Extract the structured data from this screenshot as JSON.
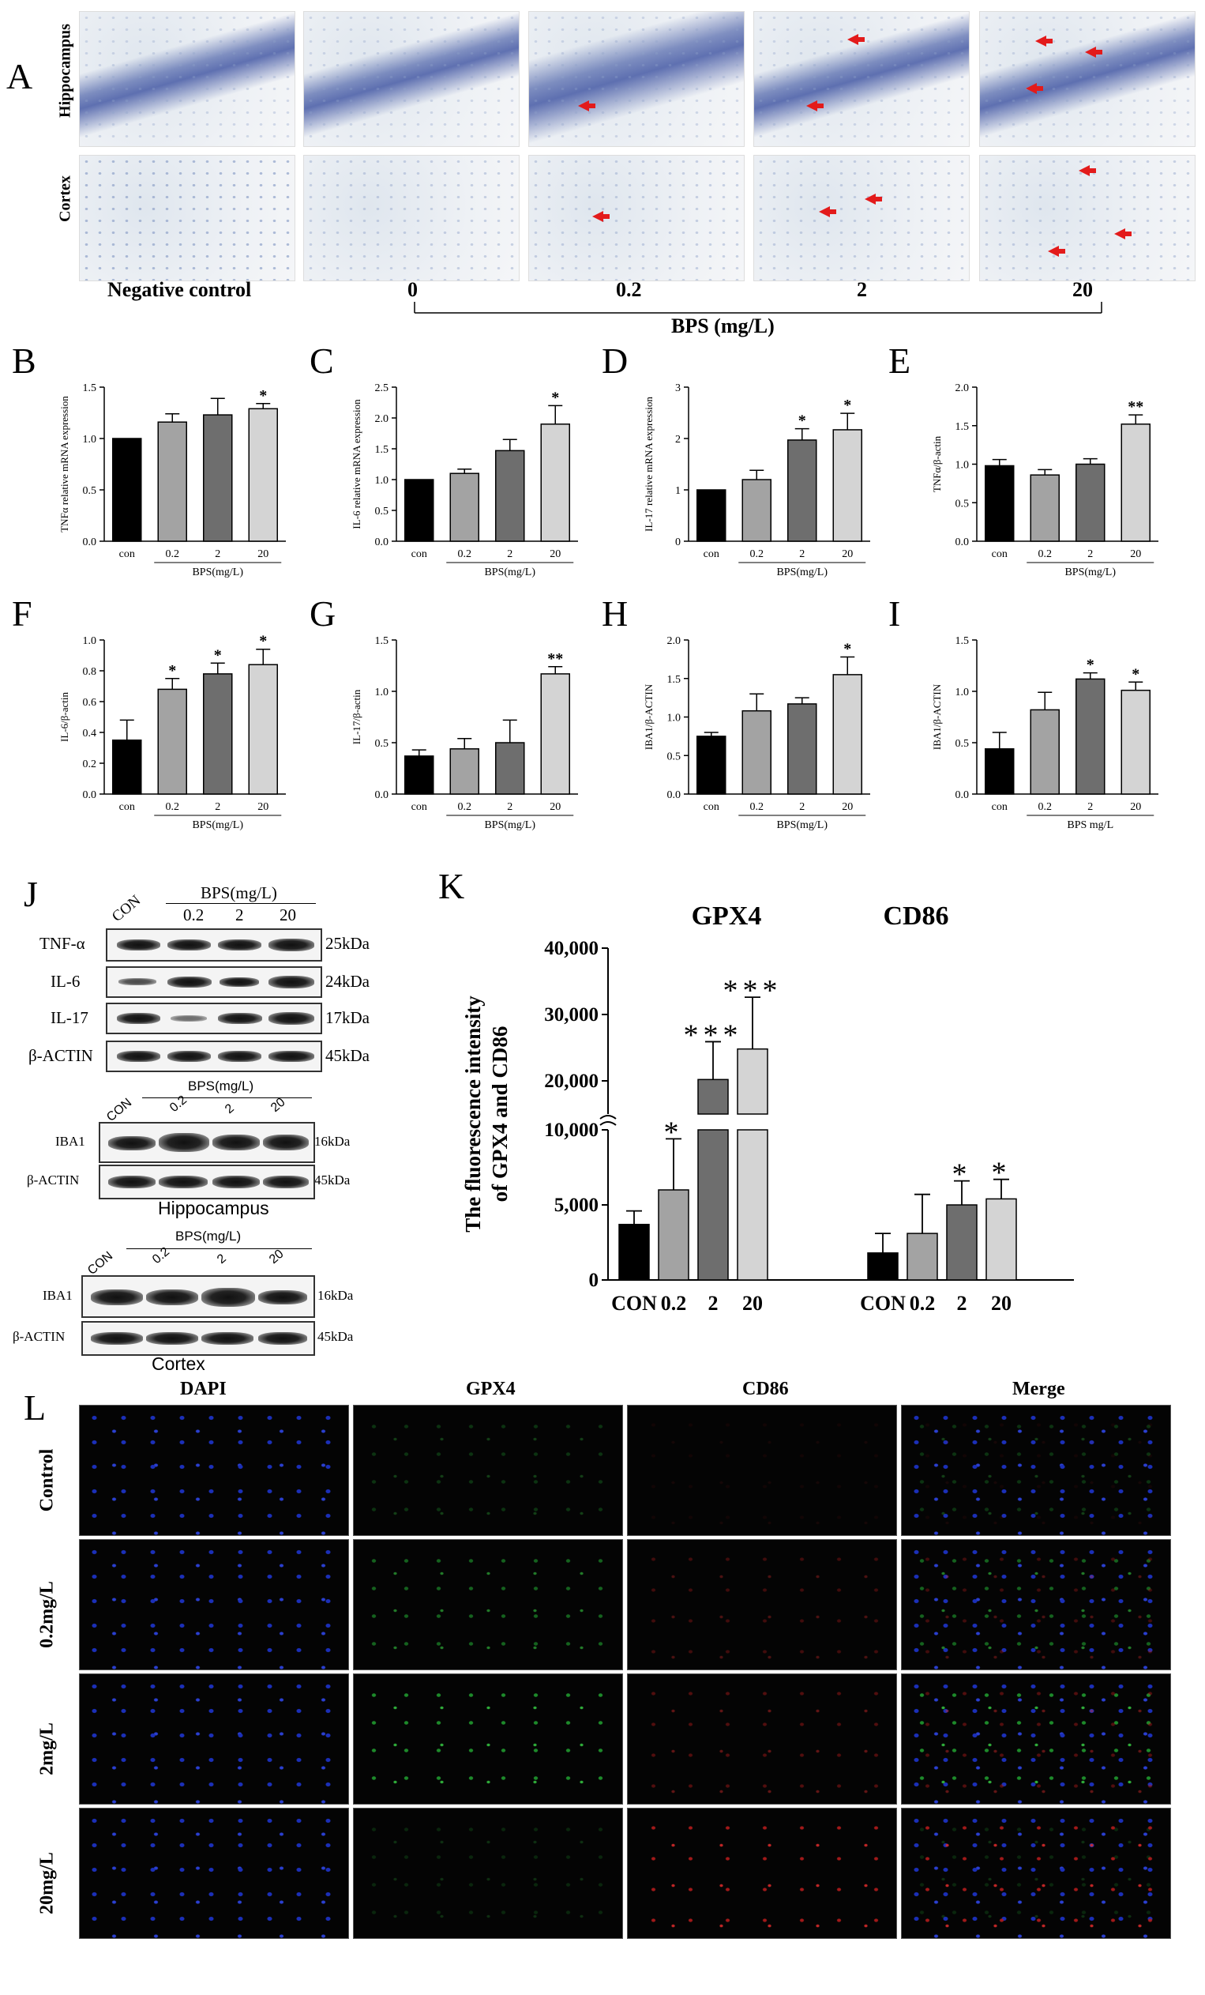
{
  "panel_letters": {
    "A": "A",
    "B": "B",
    "C": "C",
    "D": "D",
    "E": "E",
    "F": "F",
    "G": "G",
    "H": "H",
    "I": "I",
    "J": "J",
    "K": "K",
    "L": "L"
  },
  "panel_a": {
    "row_labels": [
      "Hippocampus",
      "Cortex"
    ],
    "columns": [
      "Negative control",
      "0",
      "0.2",
      "2",
      "20"
    ],
    "axis_title": "BPS (mg/L)"
  },
  "chart_data": [
    {
      "id": "B",
      "type": "bar",
      "categories": [
        "con",
        "0.2",
        "2",
        "20"
      ],
      "values": [
        1.0,
        1.16,
        1.23,
        1.29
      ],
      "errors": [
        0,
        0.08,
        0.16,
        0.05
      ],
      "stars": [
        "",
        "",
        "",
        "*"
      ],
      "ylabel": "TNFα relative mRNA expression",
      "xgroup_label": "BPS(mg/L)",
      "ylim": [
        0,
        1.5
      ],
      "yticks": [
        0.0,
        0.5,
        1.0,
        1.5
      ],
      "tick_labels": [
        "0.0",
        "0.5",
        "1.0",
        "1.5"
      ]
    },
    {
      "id": "C",
      "type": "bar",
      "categories": [
        "con",
        "0.2",
        "2",
        "20"
      ],
      "values": [
        1.0,
        1.1,
        1.47,
        1.9
      ],
      "errors": [
        0,
        0.07,
        0.18,
        0.3
      ],
      "stars": [
        "",
        "",
        "",
        "*"
      ],
      "ylabel": "IL-6 relative mRNA expression",
      "xgroup_label": "BPS(mg/L)",
      "ylim": [
        0,
        2.5
      ],
      "yticks": [
        0.0,
        0.5,
        1.0,
        1.5,
        2.0,
        2.5
      ],
      "tick_labels": [
        "0.0",
        "0.5",
        "1.0",
        "1.5",
        "2.0",
        "2.5"
      ]
    },
    {
      "id": "D",
      "type": "bar",
      "categories": [
        "con",
        "0.2",
        "2",
        "20"
      ],
      "values": [
        1.0,
        1.2,
        1.97,
        2.17
      ],
      "errors": [
        0,
        0.18,
        0.22,
        0.32
      ],
      "stars": [
        "",
        "",
        "*",
        "*"
      ],
      "ylabel": "IL-17 relative mRNA expression",
      "xgroup_label": "BPS(mg/L)",
      "ylim": [
        0,
        3
      ],
      "yticks": [
        0,
        1,
        2,
        3
      ],
      "tick_labels": [
        "0",
        "1",
        "2",
        "3"
      ]
    },
    {
      "id": "E",
      "type": "bar",
      "categories": [
        "con",
        "0.2",
        "2",
        "20"
      ],
      "values": [
        0.98,
        0.86,
        1.0,
        1.52
      ],
      "errors": [
        0.08,
        0.07,
        0.07,
        0.12
      ],
      "stars": [
        "",
        "",
        "",
        "**"
      ],
      "ylabel": "TNFα/β-actin",
      "xgroup_label": "BPS(mg/L)",
      "ylim": [
        0,
        2.0
      ],
      "yticks": [
        0.0,
        0.5,
        1.0,
        1.5,
        2.0
      ],
      "tick_labels": [
        "0.0",
        "0.5",
        "1.0",
        "1.5",
        "2.0"
      ]
    },
    {
      "id": "F",
      "type": "bar",
      "categories": [
        "con",
        "0.2",
        "2",
        "20"
      ],
      "values": [
        0.35,
        0.68,
        0.78,
        0.84
      ],
      "errors": [
        0.13,
        0.07,
        0.07,
        0.1
      ],
      "stars": [
        "",
        "*",
        "*",
        "*"
      ],
      "ylabel": "IL-6/β-actin",
      "xgroup_label": "BPS(mg/L)",
      "ylim": [
        0,
        1.0
      ],
      "yticks": [
        0.0,
        0.2,
        0.4,
        0.6,
        0.8,
        1.0
      ],
      "tick_labels": [
        "0.0",
        "0.2",
        "0.4",
        "0.6",
        "0.8",
        "1.0"
      ]
    },
    {
      "id": "G",
      "type": "bar",
      "categories": [
        "con",
        "0.2",
        "2",
        "20"
      ],
      "values": [
        0.37,
        0.44,
        0.5,
        1.17
      ],
      "errors": [
        0.06,
        0.1,
        0.22,
        0.07
      ],
      "stars": [
        "",
        "",
        "",
        "**"
      ],
      "ylabel": "IL-17/β-actin",
      "xgroup_label": "BPS(mg/L)",
      "ylim": [
        0,
        1.5
      ],
      "yticks": [
        0.0,
        0.5,
        1.0,
        1.5
      ],
      "tick_labels": [
        "0.0",
        "0.5",
        "1.0",
        "1.5"
      ]
    },
    {
      "id": "H",
      "type": "bar",
      "categories": [
        "con",
        "0.2",
        "2",
        "20"
      ],
      "values": [
        0.75,
        1.08,
        1.17,
        1.55
      ],
      "errors": [
        0.05,
        0.22,
        0.08,
        0.23
      ],
      "stars": [
        "",
        "",
        "",
        "*"
      ],
      "ylabel": "IBA1/β-ACTIN",
      "xgroup_label": "BPS(mg/L)",
      "ylim": [
        0,
        2.0
      ],
      "yticks": [
        0.0,
        0.5,
        1.0,
        1.5,
        2.0
      ],
      "tick_labels": [
        "0.0",
        "0.5",
        "1.0",
        "1.5",
        "2.0"
      ]
    },
    {
      "id": "I",
      "type": "bar",
      "categories": [
        "con",
        "0.2",
        "2",
        "20"
      ],
      "values": [
        0.44,
        0.82,
        1.12,
        1.01
      ],
      "errors": [
        0.16,
        0.17,
        0.06,
        0.08
      ],
      "stars": [
        "",
        "",
        "*",
        "*"
      ],
      "ylabel": "IBA1/β-ACTIN",
      "xgroup_label": "BPS mg/L",
      "ylim": [
        0,
        1.5
      ],
      "yticks": [
        0.0,
        0.5,
        1.0,
        1.5
      ],
      "tick_labels": [
        "0.0",
        "0.5",
        "1.0",
        "1.5"
      ]
    },
    {
      "id": "K",
      "type": "bar",
      "ylabel_lines": [
        "The fluorescence intensity",
        "of GPX4 and CD86"
      ],
      "groups": [
        "GPX4",
        "CD86"
      ],
      "categories": [
        "CON",
        "0.2",
        "2",
        "20",
        "CON",
        "0.2",
        "2",
        "20"
      ],
      "values": [
        3700,
        6000,
        20200,
        24800,
        1800,
        3100,
        5000,
        5400
      ],
      "errors": [
        900,
        3400,
        5700,
        7800,
        1300,
        2600,
        1600,
        1300
      ],
      "stars": [
        "",
        "*",
        "***",
        "***",
        "",
        "",
        "*",
        "*"
      ],
      "broken_axis": {
        "lower": [
          0,
          10000
        ],
        "upper": [
          15000,
          40000
        ]
      },
      "yticks": [
        0,
        5000,
        10000,
        20000,
        30000,
        40000
      ],
      "tick_labels": [
        "0",
        "5,000",
        "10,000",
        "20,000",
        "30,000",
        "40,000"
      ]
    }
  ],
  "panel_j": {
    "header_top": "BPS(mg/L)",
    "lanes_top": [
      "CON",
      "0.2",
      "2",
      "20"
    ],
    "rows": [
      {
        "protein": "TNF-α",
        "kda": "25kDa"
      },
      {
        "protein": "IL-6",
        "kda": "24kDa"
      },
      {
        "protein": "IL-17",
        "kda": "17kDa"
      },
      {
        "protein": "β-ACTIN",
        "kda": "45kDa"
      }
    ],
    "hippo": {
      "header": "BPS(mg/L)",
      "lanes": [
        "CON",
        "0.2",
        "2",
        "20"
      ],
      "rows": [
        {
          "protein": "IBA1",
          "kda": "16kDa"
        },
        {
          "protein": "β-ACTIN",
          "kda": "45kDa"
        }
      ],
      "caption": "Hippocampus"
    },
    "cortex": {
      "header": "BPS(mg/L)",
      "lanes": [
        "CON",
        "0.2",
        "2",
        "20"
      ],
      "rows": [
        {
          "protein": "IBA1",
          "kda": "16kDa"
        },
        {
          "protein": "β-ACTIN",
          "kda": "45kDa"
        }
      ],
      "caption": "Cortex"
    }
  },
  "panel_l": {
    "columns": [
      "DAPI",
      "GPX4",
      "CD86",
      "Merge"
    ],
    "rows": [
      "Control",
      "0.2mg/L",
      "2mg/L",
      "20mg/L"
    ]
  },
  "colors": {
    "bar_con": "#000000",
    "bar_02": "#a3a3a3",
    "bar_2": "#6e6e6e",
    "bar_20": "#d4d4d4",
    "arrow": "#e31b1b",
    "dapi": "#1b2fb8",
    "gpx4": "#2fae3a",
    "cd86": "#d52a2a"
  }
}
